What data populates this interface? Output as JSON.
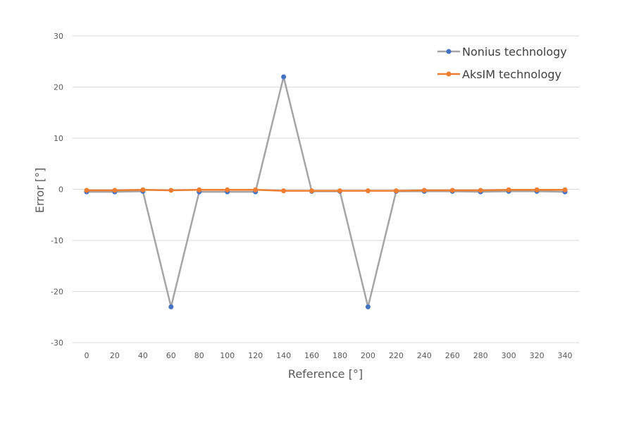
{
  "chart_data": {
    "type": "line",
    "xlabel": "Reference [°]",
    "ylabel": "Error [°]",
    "x": [
      0,
      20,
      40,
      60,
      80,
      100,
      120,
      140,
      160,
      180,
      200,
      220,
      240,
      260,
      280,
      300,
      320,
      340
    ],
    "ylim": [
      -30,
      30
    ],
    "yticks": [
      -30,
      -20,
      -10,
      0,
      10,
      20,
      30
    ],
    "grid": true,
    "legend_position": "top-right",
    "series": [
      {
        "name": "Nonius technology",
        "line_color": "#a5a5a5",
        "marker_color": "#4472c4",
        "values": [
          -0.5,
          -0.5,
          -0.4,
          -23,
          -0.5,
          -0.5,
          -0.5,
          22,
          -0.4,
          -0.4,
          -23,
          -0.4,
          -0.4,
          -0.4,
          -0.5,
          -0.4,
          -0.4,
          -0.5
        ]
      },
      {
        "name": "AksIM technology",
        "line_color": "#ed7d31",
        "marker_color": "#ed7d31",
        "values": [
          -0.2,
          -0.2,
          -0.1,
          -0.2,
          -0.1,
          -0.1,
          -0.1,
          -0.3,
          -0.3,
          -0.3,
          -0.3,
          -0.3,
          -0.2,
          -0.2,
          -0.2,
          -0.1,
          -0.1,
          -0.1
        ]
      }
    ]
  }
}
